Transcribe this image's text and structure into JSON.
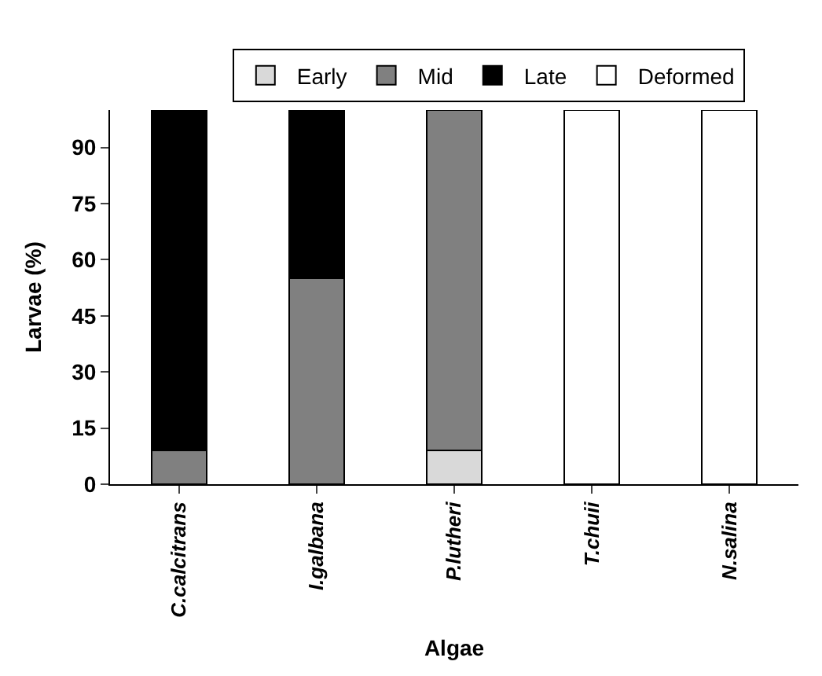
{
  "chart_data": {
    "type": "bar",
    "stacked": true,
    "xlabel": "Algae",
    "ylabel": "Larvae (%)",
    "categories": [
      "C.calcitrans",
      "I.galbana",
      "P.lutheri",
      "T.chuii",
      "N.salina"
    ],
    "series": [
      {
        "name": "Early",
        "color": "#d9d9d9",
        "values": [
          null,
          null,
          9,
          null,
          null
        ]
      },
      {
        "name": "Mid",
        "color": "#808080",
        "values": [
          9,
          55,
          91,
          null,
          null
        ]
      },
      {
        "name": "Late",
        "color": "#000000",
        "values": [
          91,
          45,
          null,
          null,
          null
        ]
      },
      {
        "name": "Deformed",
        "color": "#ffffff",
        "values": [
          null,
          null,
          null,
          100,
          100
        ]
      }
    ],
    "ylim": [
      0,
      100
    ],
    "yticks": [
      0,
      15,
      30,
      45,
      60,
      75,
      90
    ],
    "legend": "top"
  }
}
